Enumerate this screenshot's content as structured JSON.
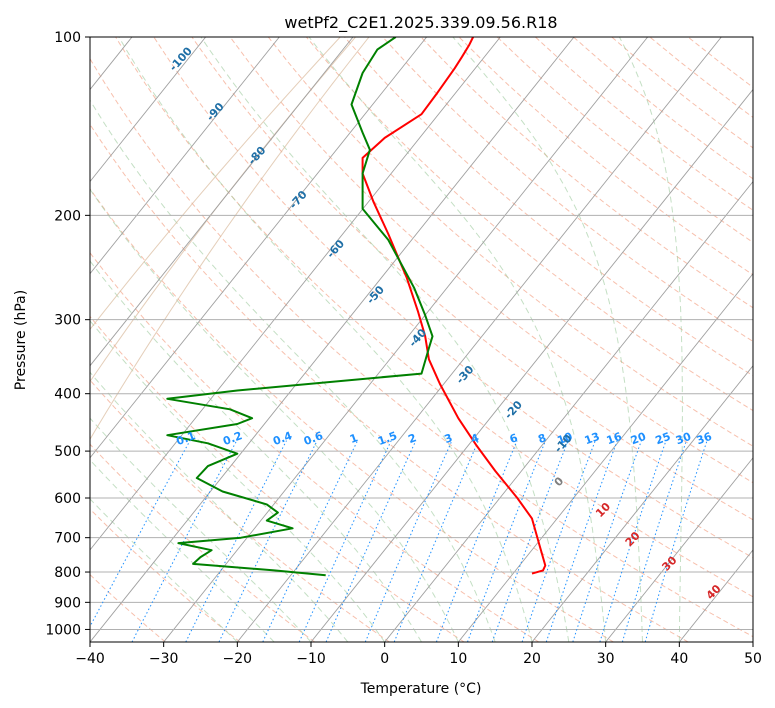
{
  "chart_data": {
    "type": "line",
    "title": "wetPf2_C2E1.2025.339.09.56.R18",
    "xlabel": "Temperature (°C)",
    "ylabel": "Pressure (hPa)",
    "xlim": [
      -40,
      50
    ],
    "ylim": [
      1050,
      100
    ],
    "y_scale": "log",
    "x_ticks": [
      -40,
      -30,
      -20,
      -10,
      0,
      10,
      20,
      30,
      40,
      50
    ],
    "y_ticks": [
      1000,
      900,
      800,
      700,
      600,
      500,
      400,
      300,
      200,
      100
    ],
    "grid": true,
    "series": [
      {
        "color": "#ff0000",
        "points": [
          [
            20.0,
            805
          ],
          [
            21.5,
            795
          ],
          [
            21.8,
            780
          ],
          [
            21.0,
            720
          ],
          [
            20.0,
            650
          ],
          [
            18.0,
            600
          ],
          [
            15.0,
            540
          ],
          [
            12.5,
            490
          ],
          [
            10.0,
            440
          ],
          [
            7.5,
            385
          ],
          [
            6.0,
            350
          ],
          [
            5.5,
            320
          ],
          [
            4.5,
            290
          ],
          [
            3.0,
            255
          ],
          [
            0.5,
            215
          ],
          [
            -1.5,
            190
          ],
          [
            -3.0,
            170
          ],
          [
            -3.0,
            160
          ],
          [
            0.0,
            148
          ],
          [
            5.0,
            135
          ],
          [
            7.0,
            125
          ],
          [
            9.5,
            113
          ],
          [
            10.5,
            108
          ],
          [
            11.5,
            103
          ],
          [
            12.0,
            100
          ]
        ]
      },
      {
        "color": "#008000",
        "points": [
          [
            -8.0,
            810
          ],
          [
            -15.0,
            795
          ],
          [
            -26.0,
            775
          ],
          [
            -25.0,
            755
          ],
          [
            -23.5,
            735
          ],
          [
            -28.0,
            715
          ],
          [
            -19.5,
            700
          ],
          [
            -12.5,
            675
          ],
          [
            -16.0,
            655
          ],
          [
            -14.5,
            635
          ],
          [
            -16.0,
            615
          ],
          [
            -22.0,
            585
          ],
          [
            -25.5,
            555
          ],
          [
            -24.0,
            530
          ],
          [
            -20.0,
            505
          ],
          [
            -24.0,
            485
          ],
          [
            -29.5,
            470
          ],
          [
            -20.0,
            450
          ],
          [
            -18.0,
            440
          ],
          [
            -21.0,
            425
          ],
          [
            -29.5,
            408
          ],
          [
            -20.0,
            395
          ],
          [
            5.0,
            370
          ],
          [
            6.0,
            335
          ],
          [
            6.5,
            320
          ],
          [
            5.5,
            295
          ],
          [
            4.0,
            265
          ],
          [
            0.5,
            220
          ],
          [
            -3.0,
            195
          ],
          [
            -3.0,
            170
          ],
          [
            -2.0,
            155
          ],
          [
            -3.0,
            145
          ],
          [
            -4.5,
            130
          ],
          [
            -3.0,
            115
          ],
          [
            -1.0,
            105
          ],
          [
            1.5,
            100
          ]
        ]
      }
    ],
    "annotations": {
      "mixing_ratio_labels": [
        "0.1",
        "0.2",
        "0.4",
        "0.6",
        "1",
        "1.5",
        "2",
        "3",
        "4",
        "6",
        "8",
        "10",
        "13",
        "16",
        "20",
        "25",
        "30",
        "36"
      ],
      "dry_adiabat_labels": [
        "-100",
        "-90",
        "-80",
        "-70",
        "-60",
        "-50",
        "-40",
        "-30",
        "-20",
        "-10"
      ],
      "moist_adiabat_labels": [
        "0",
        "10",
        "20",
        "30",
        "40"
      ]
    },
    "style": {
      "temperature_color": "#ff0000",
      "dewpoint_color": "#008000",
      "mixing_ratio_color": "#1e90ff",
      "dry_adiabat_label_color": "#1f6fa6",
      "moist_adiabat_label_color": "#d62728",
      "moist_zero_color": "#7f7f7f"
    }
  }
}
